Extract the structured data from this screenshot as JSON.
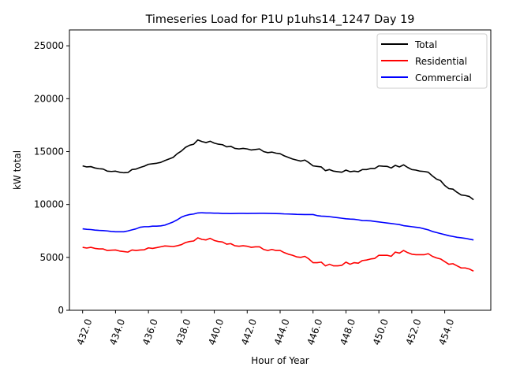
{
  "chart_data": {
    "type": "line",
    "title": "Timeseries Load for P1U p1uhs14_1247  Day 19",
    "xlabel": "Hour of Year",
    "ylabel": "kW total",
    "xlim": [
      431.2,
      456.8
    ],
    "ylim": [
      0,
      26500
    ],
    "xticks": [
      432,
      434,
      436,
      438,
      440,
      442,
      444,
      446,
      448,
      450,
      452,
      454
    ],
    "xtick_labels": [
      "432.0",
      "434.0",
      "436.0",
      "438.0",
      "440.0",
      "442.0",
      "444.0",
      "446.0",
      "448.0",
      "450.0",
      "452.0",
      "454.0"
    ],
    "yticks": [
      0,
      5000,
      10000,
      15000,
      20000,
      25000
    ],
    "ytick_labels": [
      "0",
      "5000",
      "10000",
      "15000",
      "20000",
      "25000"
    ],
    "legend_position": "top-right",
    "grid": false,
    "x_start": 432.0,
    "x_step": 0.25,
    "series": [
      {
        "name": "Total",
        "color": "#000000",
        "values": [
          13650,
          13550,
          13580,
          13450,
          13380,
          13350,
          13150,
          13120,
          13150,
          13050,
          13000,
          13020,
          13300,
          13350,
          13500,
          13620,
          13800,
          13850,
          13900,
          13980,
          14150,
          14300,
          14450,
          14800,
          15050,
          15400,
          15600,
          15700,
          16100,
          15950,
          15850,
          15980,
          15800,
          15700,
          15650,
          15450,
          15500,
          15300,
          15250,
          15300,
          15250,
          15150,
          15200,
          15250,
          15000,
          14900,
          14950,
          14850,
          14800,
          14600,
          14450,
          14300,
          14200,
          14100,
          14200,
          13950,
          13650,
          13600,
          13550,
          13200,
          13300,
          13150,
          13100,
          13050,
          13250,
          13100,
          13150,
          13100,
          13300,
          13300,
          13400,
          13400,
          13650,
          13620,
          13600,
          13450,
          13700,
          13550,
          13750,
          13500,
          13300,
          13250,
          13150,
          13120,
          13050,
          12700,
          12400,
          12250,
          11800,
          11500,
          11450,
          11150,
          10900,
          10850,
          10750,
          10450
        ]
      },
      {
        "name": "Residential",
        "color": "#ff0000",
        "values": [
          5950,
          5880,
          5950,
          5850,
          5800,
          5800,
          5650,
          5680,
          5700,
          5600,
          5550,
          5500,
          5700,
          5650,
          5700,
          5720,
          5900,
          5850,
          5920,
          6000,
          6080,
          6050,
          6020,
          6100,
          6200,
          6400,
          6500,
          6550,
          6850,
          6700,
          6650,
          6800,
          6600,
          6500,
          6450,
          6250,
          6300,
          6100,
          6050,
          6100,
          6050,
          5950,
          6000,
          6000,
          5750,
          5650,
          5750,
          5650,
          5650,
          5450,
          5300,
          5200,
          5050,
          5000,
          5100,
          4850,
          4500,
          4500,
          4550,
          4200,
          4350,
          4200,
          4200,
          4250,
          4550,
          4350,
          4500,
          4450,
          4700,
          4750,
          4850,
          4900,
          5200,
          5200,
          5200,
          5100,
          5500,
          5400,
          5650,
          5450,
          5300,
          5250,
          5250,
          5250,
          5350,
          5100,
          4950,
          4850,
          4600,
          4350,
          4400,
          4200,
          4000,
          4000,
          3900,
          3700
        ]
      },
      {
        "name": "Commercial",
        "color": "#0000ff",
        "values": [
          7700,
          7650,
          7630,
          7580,
          7550,
          7530,
          7500,
          7450,
          7420,
          7420,
          7420,
          7500,
          7600,
          7700,
          7850,
          7900,
          7900,
          7950,
          7950,
          7980,
          8050,
          8200,
          8350,
          8550,
          8800,
          8950,
          9050,
          9100,
          9200,
          9220,
          9200,
          9200,
          9180,
          9180,
          9150,
          9150,
          9140,
          9150,
          9160,
          9160,
          9150,
          9160,
          9160,
          9170,
          9170,
          9160,
          9150,
          9140,
          9130,
          9110,
          9100,
          9090,
          9070,
          9060,
          9050,
          9050,
          9050,
          8950,
          8900,
          8880,
          8850,
          8800,
          8750,
          8700,
          8650,
          8620,
          8600,
          8550,
          8480,
          8470,
          8450,
          8400,
          8350,
          8300,
          8250,
          8200,
          8150,
          8100,
          8000,
          7950,
          7900,
          7850,
          7800,
          7700,
          7600,
          7450,
          7350,
          7250,
          7150,
          7050,
          6980,
          6900,
          6850,
          6800,
          6720,
          6650
        ]
      }
    ]
  }
}
